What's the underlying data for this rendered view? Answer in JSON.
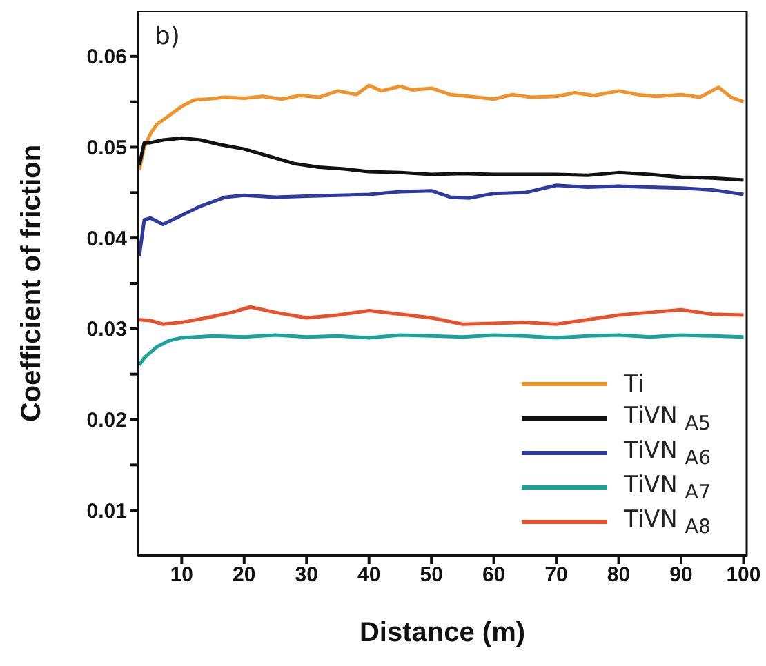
{
  "chart_data": {
    "type": "line",
    "xlabel": "Distance (m)",
    "ylabel": "Coefficient of friction",
    "annotations": [
      "b)"
    ],
    "xlim": [
      3,
      100.5
    ],
    "xticks": [
      10,
      20,
      30,
      40,
      50,
      60,
      70,
      80,
      90,
      100
    ],
    "ylim": [
      0.005,
      0.065
    ],
    "yticks": [
      {
        "value": 0.01,
        "label": "0.01"
      },
      {
        "value": 0.015,
        "label": null
      },
      {
        "value": 0.02,
        "label": "0.02"
      },
      {
        "value": 0.025,
        "label": null
      },
      {
        "value": 0.03,
        "label": "0.03"
      },
      {
        "value": 0.035,
        "label": null
      },
      {
        "value": 0.04,
        "label": "0.04"
      },
      {
        "value": 0.045,
        "label": null
      },
      {
        "value": 0.05,
        "label": "0.05"
      },
      {
        "value": 0.055,
        "label": null
      },
      {
        "value": 0.06,
        "label": "0.06"
      }
    ],
    "grid": false,
    "legend": "bottom right",
    "marker": "none",
    "line_style": "solid",
    "series": [
      {
        "name": "Ti",
        "color": "#f0922a",
        "x": [
          3.2,
          4,
          5,
          6,
          8,
          10,
          12,
          14,
          17,
          20,
          23,
          26,
          29,
          32,
          35,
          38,
          40,
          42,
          45,
          47,
          50,
          53,
          56,
          60,
          63,
          66,
          70,
          73,
          76,
          80,
          83,
          86,
          90,
          93,
          96,
          98,
          100
        ],
        "values": [
          0.0475,
          0.05,
          0.0515,
          0.0525,
          0.0535,
          0.0545,
          0.0552,
          0.0553,
          0.0555,
          0.0554,
          0.0556,
          0.0553,
          0.0557,
          0.0555,
          0.0562,
          0.0558,
          0.0568,
          0.0562,
          0.0567,
          0.0563,
          0.0565,
          0.0558,
          0.0556,
          0.0553,
          0.0558,
          0.0555,
          0.0556,
          0.056,
          0.0557,
          0.0562,
          0.0558,
          0.0556,
          0.0558,
          0.0555,
          0.0566,
          0.0555,
          0.055
        ]
      },
      {
        "name": "TiVN $_{A5}$",
        "color": "#111111",
        "x": [
          3.2,
          4,
          5,
          7,
          10,
          13,
          16,
          20,
          24,
          28,
          32,
          36,
          40,
          45,
          50,
          55,
          60,
          65,
          70,
          75,
          80,
          85,
          90,
          95,
          100
        ],
        "values": [
          0.048,
          0.0505,
          0.0505,
          0.0508,
          0.051,
          0.0508,
          0.0503,
          0.0498,
          0.049,
          0.0482,
          0.0478,
          0.0476,
          0.0473,
          0.0472,
          0.047,
          0.0471,
          0.047,
          0.047,
          0.047,
          0.0469,
          0.0472,
          0.047,
          0.0467,
          0.0466,
          0.0464
        ]
      },
      {
        "name": "TiVN $_{A6}$",
        "color": "#2e3a9e",
        "x": [
          3.2,
          4,
          5,
          7,
          10,
          13,
          17,
          20,
          25,
          30,
          35,
          40,
          45,
          50,
          53,
          56,
          60,
          65,
          70,
          75,
          80,
          85,
          90,
          95,
          100
        ],
        "values": [
          0.038,
          0.042,
          0.0422,
          0.0415,
          0.0425,
          0.0435,
          0.0445,
          0.0447,
          0.0445,
          0.0446,
          0.0447,
          0.0448,
          0.0451,
          0.0452,
          0.0445,
          0.0444,
          0.0449,
          0.045,
          0.0458,
          0.0456,
          0.0457,
          0.0456,
          0.0455,
          0.0453,
          0.0448
        ]
      },
      {
        "name": "TiVN $_{A7}$",
        "color": "#1aa39a",
        "x": [
          3.2,
          4,
          6,
          8,
          10,
          15,
          20,
          25,
          30,
          35,
          40,
          45,
          50,
          55,
          60,
          65,
          70,
          75,
          80,
          85,
          90,
          95,
          100
        ],
        "values": [
          0.026,
          0.0268,
          0.028,
          0.0287,
          0.029,
          0.0292,
          0.0291,
          0.0293,
          0.0291,
          0.0292,
          0.029,
          0.0293,
          0.0292,
          0.0291,
          0.0293,
          0.0292,
          0.029,
          0.0292,
          0.0293,
          0.0291,
          0.0293,
          0.0292,
          0.0291
        ]
      },
      {
        "name": "TiVN $_{A8}$",
        "color": "#e8512a",
        "x": [
          3.2,
          5,
          7,
          10,
          14,
          18,
          21,
          25,
          30,
          35,
          40,
          45,
          50,
          55,
          60,
          65,
          70,
          75,
          80,
          85,
          90,
          95,
          100
        ],
        "values": [
          0.031,
          0.0309,
          0.0305,
          0.0307,
          0.0312,
          0.0318,
          0.0324,
          0.0318,
          0.0312,
          0.0315,
          0.032,
          0.0316,
          0.0312,
          0.0305,
          0.0306,
          0.0307,
          0.0305,
          0.031,
          0.0315,
          0.0318,
          0.0321,
          0.0316,
          0.0315
        ]
      }
    ]
  }
}
